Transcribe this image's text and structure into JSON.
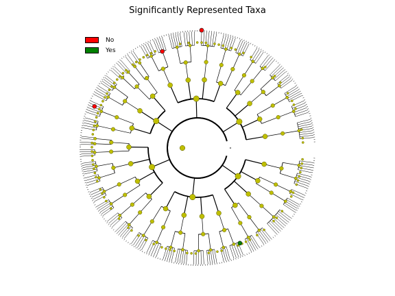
{
  "title": "Significantly Represented Taxa",
  "legend": [
    {
      "label": "No",
      "color": "#ff0000"
    },
    {
      "label": "Yes",
      "color": "#008000"
    }
  ],
  "colors": {
    "node": "#bfbf00",
    "node_edge": "#555500",
    "branch": "#000000",
    "leaf_tick": "#333300",
    "highlight_no": "#ff0000",
    "highlight_yes": "#008000"
  }
}
